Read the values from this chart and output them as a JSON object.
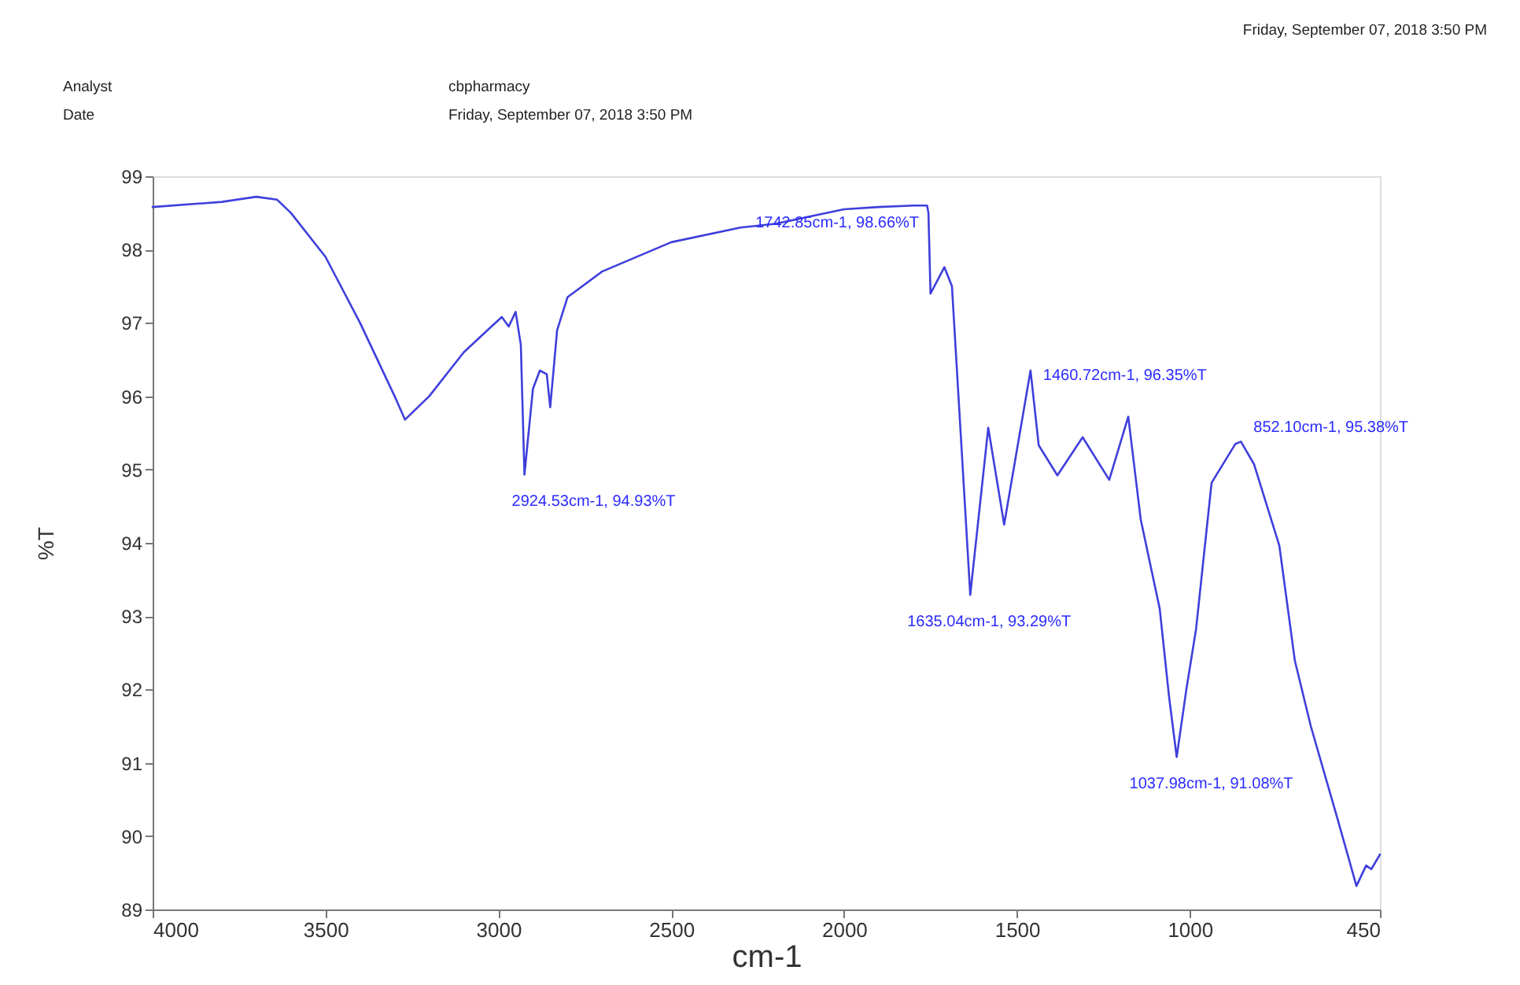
{
  "chart_data": {
    "type": "line",
    "xlabel": "cm-1",
    "ylabel": "%T",
    "xlim": [
      4000,
      450
    ],
    "ylim": [
      89,
      99
    ],
    "xticks": [
      4000,
      3500,
      3000,
      2500,
      2000,
      1500,
      1000,
      450
    ],
    "yticks": [
      89,
      90,
      91,
      92,
      93,
      94,
      95,
      96,
      97,
      98,
      99
    ],
    "grid": false,
    "marker": "none",
    "line_style": "solid",
    "series": [
      {
        "color": "#3f3fdc",
        "x": [
          4000,
          3800,
          3700,
          3640,
          3600,
          3500,
          3400,
          3300,
          3270,
          3200,
          3100,
          3020,
          2990,
          2970,
          2950,
          2935,
          2924.53,
          2900,
          2880,
          2860,
          2850,
          2830,
          2800,
          2700,
          2500,
          2300,
          2200,
          2100,
          2000,
          1900,
          1800,
          1760,
          1756,
          1750,
          1710,
          1688,
          1635.04,
          1583,
          1537,
          1460.72,
          1437,
          1383,
          1310,
          1233,
          1178,
          1142,
          1087,
          1060,
          1037.98,
          1010,
          982,
          937,
          868,
          852.1,
          814,
          741,
          696,
          650,
          573,
          518,
          490,
          475,
          450
        ],
        "values": [
          98.58,
          98.65,
          98.72,
          98.68,
          98.5,
          97.9,
          97.0,
          96.0,
          95.68,
          96.0,
          96.6,
          96.95,
          97.08,
          96.95,
          97.15,
          96.7,
          94.93,
          96.1,
          96.35,
          96.3,
          95.85,
          96.9,
          97.35,
          97.7,
          98.1,
          98.3,
          98.35,
          98.45,
          98.55,
          98.58,
          98.6,
          98.6,
          98.5,
          97.4,
          97.76,
          97.5,
          93.29,
          95.57,
          94.25,
          96.35,
          95.33,
          94.92,
          95.44,
          94.86,
          95.72,
          94.32,
          93.1,
          91.9,
          91.08,
          92.0,
          92.82,
          94.82,
          95.35,
          95.38,
          95.07,
          93.96,
          92.39,
          91.5,
          90.24,
          89.32,
          89.6,
          89.55,
          89.75
        ]
      }
    ],
    "annotations": [
      "Analyst",
      "cbpharmacy",
      "Date",
      "Friday, September 07, 2018 3:50 PM",
      "Friday, September 07, 2018 3:50 PM",
      {
        "text": "2924.53cm-1, 94.93%T",
        "x": 2924.53,
        "y": 94.93
      },
      {
        "text": "1742.85cm-1, 98.66%T",
        "x": 1756,
        "y": 98.6
      },
      {
        "text": "1460.72cm-1, 96.35%T",
        "x": 1460.72,
        "y": 96.35
      },
      {
        "text": "1635.04cm-1, 93.29%T",
        "x": 1635.04,
        "y": 93.29
      },
      {
        "text": "852.10cm-1, 95.38%T",
        "x": 852.1,
        "y": 95.38
      },
      {
        "text": "1037.98cm-1, 91.08%T",
        "x": 1037.98,
        "y": 91.08
      }
    ]
  }
}
